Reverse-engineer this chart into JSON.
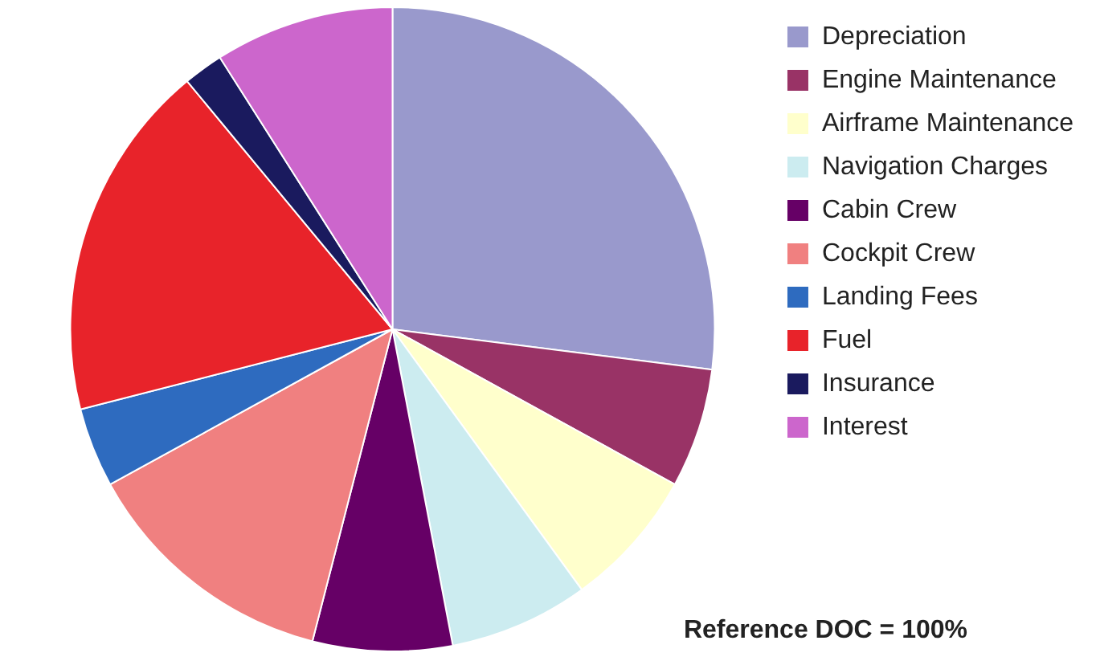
{
  "chart_data": {
    "type": "pie",
    "categories": [
      "Depreciation",
      "Engine Maintenance",
      "Airframe Maintenance",
      "Navigation Charges",
      "Cabin Crew",
      "Cockpit Crew",
      "Landing Fees",
      "Fuel",
      "Insurance",
      "Interest"
    ],
    "values": [
      27,
      6,
      7,
      7,
      7,
      13,
      4,
      18,
      2,
      9
    ],
    "colors": [
      "#9999cc",
      "#993366",
      "#ffffcc",
      "#ccecf0",
      "#660066",
      "#f08080",
      "#2e6bbf",
      "#e8232a",
      "#1a1a5e",
      "#cc66cc"
    ],
    "legend": "right",
    "annotations": [
      "Reference DOC = 100%"
    ]
  }
}
